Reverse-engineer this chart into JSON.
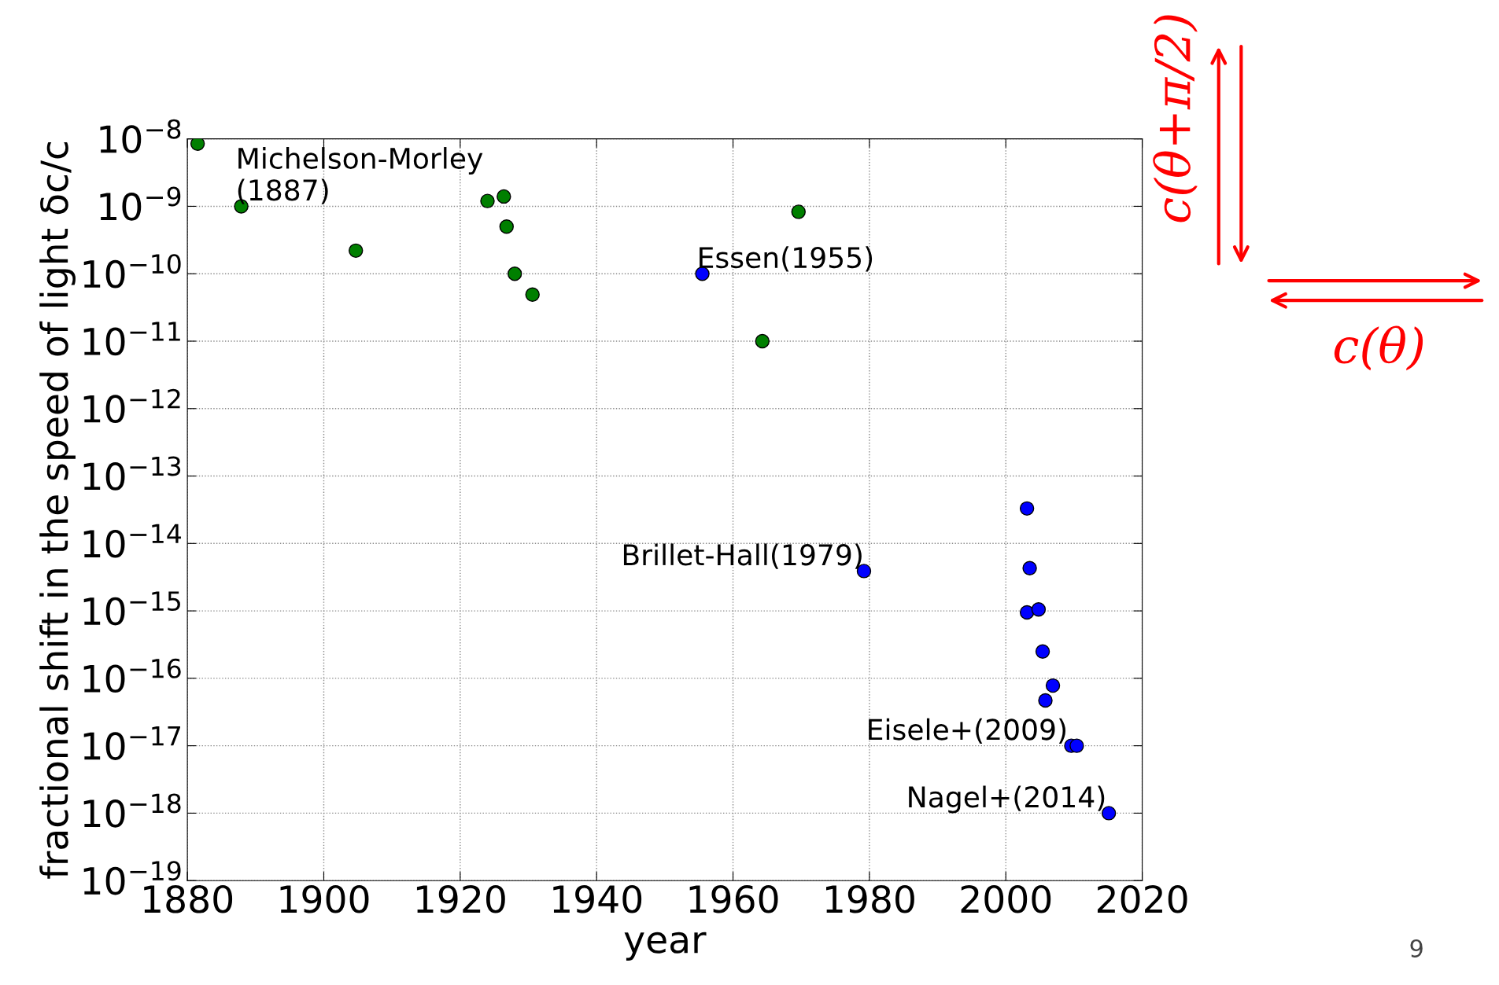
{
  "chart_data": {
    "type": "scatter",
    "xlabel": "year",
    "ylabel": "fractional shift in the speed of light δc/c",
    "series": [
      {
        "color": "#007f00",
        "x": [
          1881.5,
          1887.9,
          1904.7,
          1924.0,
          1926.4,
          1926.8,
          1928.0,
          1930.6,
          1964.3,
          1969.6
        ],
        "values": [
          8.5e-09,
          1e-09,
          2.2e-10,
          1.2e-09,
          1.4e-09,
          5e-10,
          1e-10,
          4.9e-11,
          1e-11,
          8.3e-10
        ]
      },
      {
        "color": "#0000ff",
        "x": [
          1955.5,
          1979.2,
          2003.1,
          2003.5,
          2003.1,
          2004.8,
          2005.4,
          2006.9,
          2005.8,
          2009.6,
          2010.4,
          2015.1
        ],
        "values": [
          1e-10,
          3.9e-15,
          3.3e-14,
          4.3e-15,
          9.5e-16,
          1.05e-15,
          2.5e-16,
          7.8e-17,
          4.7e-17,
          1e-17,
          1e-17,
          1e-18
        ]
      }
    ],
    "marker": "circle",
    "log": "y",
    "grid": true,
    "xlim": [
      1880,
      2020
    ],
    "xticks": [
      1880,
      1900,
      1920,
      1940,
      1960,
      1980,
      2000,
      2020
    ],
    "ylim": [
      1e-19,
      1e-08
    ],
    "yticks": [
      {
        "value": 1e-19,
        "label": "10$^{−19}$"
      },
      {
        "value": 1e-18,
        "label": "10$^{−18}$"
      },
      {
        "value": 1e-17,
        "label": "10$^{−17}$"
      },
      {
        "value": 1e-16,
        "label": "10$^{−16}$"
      },
      {
        "value": 1e-15,
        "label": "10$^{−15}$"
      },
      {
        "value": 1e-14,
        "label": "10$^{−14}$"
      },
      {
        "value": 1e-13,
        "label": "10$^{−13}$"
      },
      {
        "value": 1e-12,
        "label": "10$^{−12}$"
      },
      {
        "value": 1e-11,
        "label": "10$^{−11}$"
      },
      {
        "value": 1e-10,
        "label": "10$^{−10}$"
      },
      {
        "value": 1e-09,
        "label": "10$^{−9}$"
      },
      {
        "value": 1e-08,
        "label": "10$^{−8}$"
      }
    ],
    "annotations": [
      {
        "text": "Michelson-Morley\n(1887)",
        "x": 1887.9,
        "y": 1e-09
      },
      {
        "text": "Essen(1955)",
        "x": 1955.5,
        "y": 1e-10
      },
      {
        "text": "Brillet-Hall(1979)",
        "x": 1979.2,
        "y": 3.9e-15
      },
      {
        "text": "Eisele+(2009)",
        "x": 2009.9,
        "y": 1e-17
      },
      {
        "text": "Nagel+(2014)",
        "x": 2015.1,
        "y": 1e-18
      },
      "c(θ+π/2)",
      "c(θ)",
      "9"
    ]
  }
}
